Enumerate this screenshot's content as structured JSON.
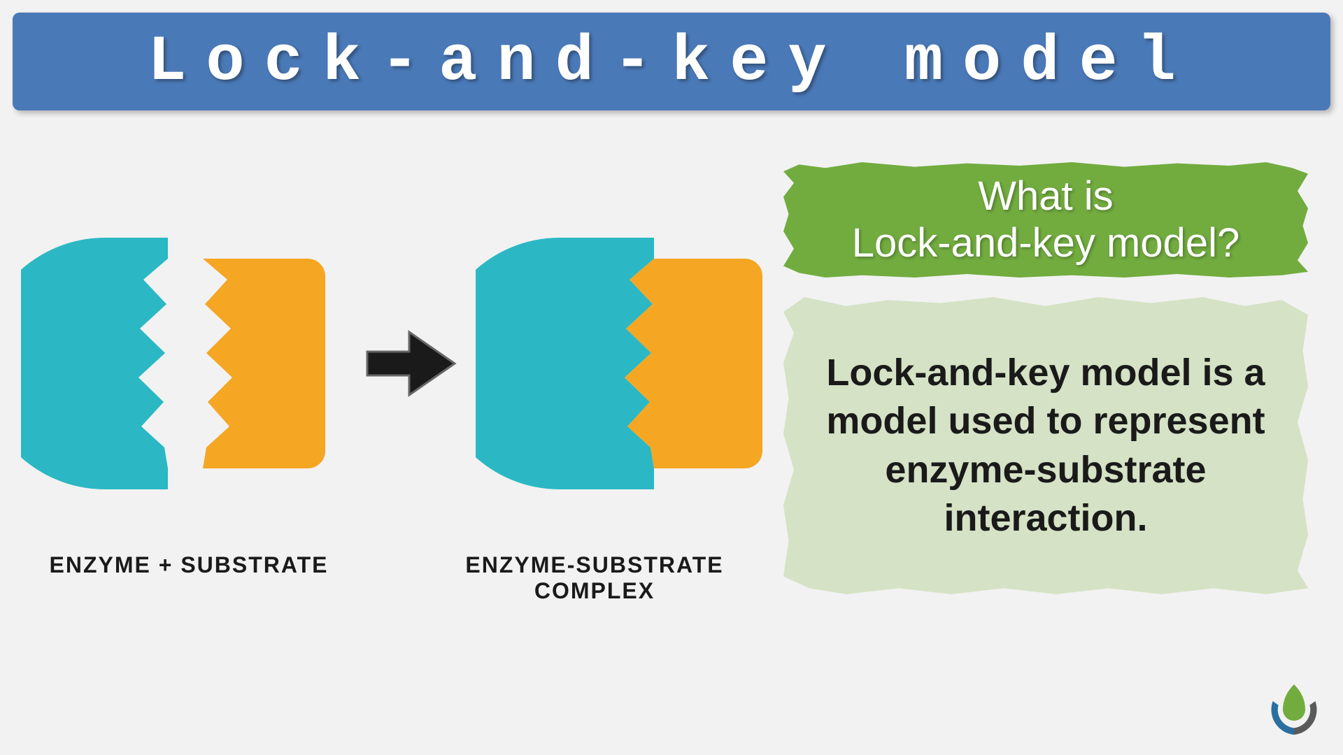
{
  "header": {
    "title": "Lock-and-key model"
  },
  "diagram": {
    "type": "infographic",
    "enzyme_color": "#2bb8c4",
    "substrate_color": "#f5a623",
    "arrow_color": "#1a1a1a",
    "label_left": "ENZYME  +  SUBSTRATE",
    "label_right": "ENZYME-SUBSTRATE COMPLEX",
    "label_fontsize": 32,
    "label_color": "#1a1a1a"
  },
  "green_panel": {
    "background": "#72ac3f",
    "text_color": "#ffffff",
    "text": "What is\nLock-and-key model?",
    "fontsize": 58
  },
  "cream_panel": {
    "background": "#d5e2c5",
    "text_color": "#1a1a1a",
    "text": "Lock-and-key model is a model used to represent enzyme-substrate interaction.",
    "fontsize": 54
  },
  "logo": {
    "green": "#72ac3f",
    "blue": "#2a6fa0",
    "grey": "#5a5a5a"
  },
  "background_color": "#f2f2f2"
}
